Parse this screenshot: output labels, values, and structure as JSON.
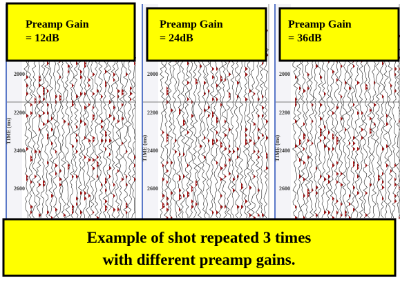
{
  "panels": [
    {
      "label": [
        "Preamp Gain",
        "= 12dB"
      ],
      "axis_label": "TIME (ms)",
      "ticks": [
        "2000",
        "2200",
        "2400",
        "2600"
      ]
    },
    {
      "label": [
        "Preamp Gain",
        "= 24dB"
      ],
      "axis_label": "TIME (ms)",
      "ticks": [
        "2000",
        "2200",
        "2400",
        "2600"
      ]
    },
    {
      "label": [
        "Preamp Gain",
        "= 36dB"
      ],
      "axis_label": "TIME (ms)",
      "ticks": [
        "2000",
        "2200",
        "2400",
        "2600"
      ]
    }
  ],
  "caption": [
    "Example of shot repeated 3 times",
    "with different preamp gains."
  ]
}
